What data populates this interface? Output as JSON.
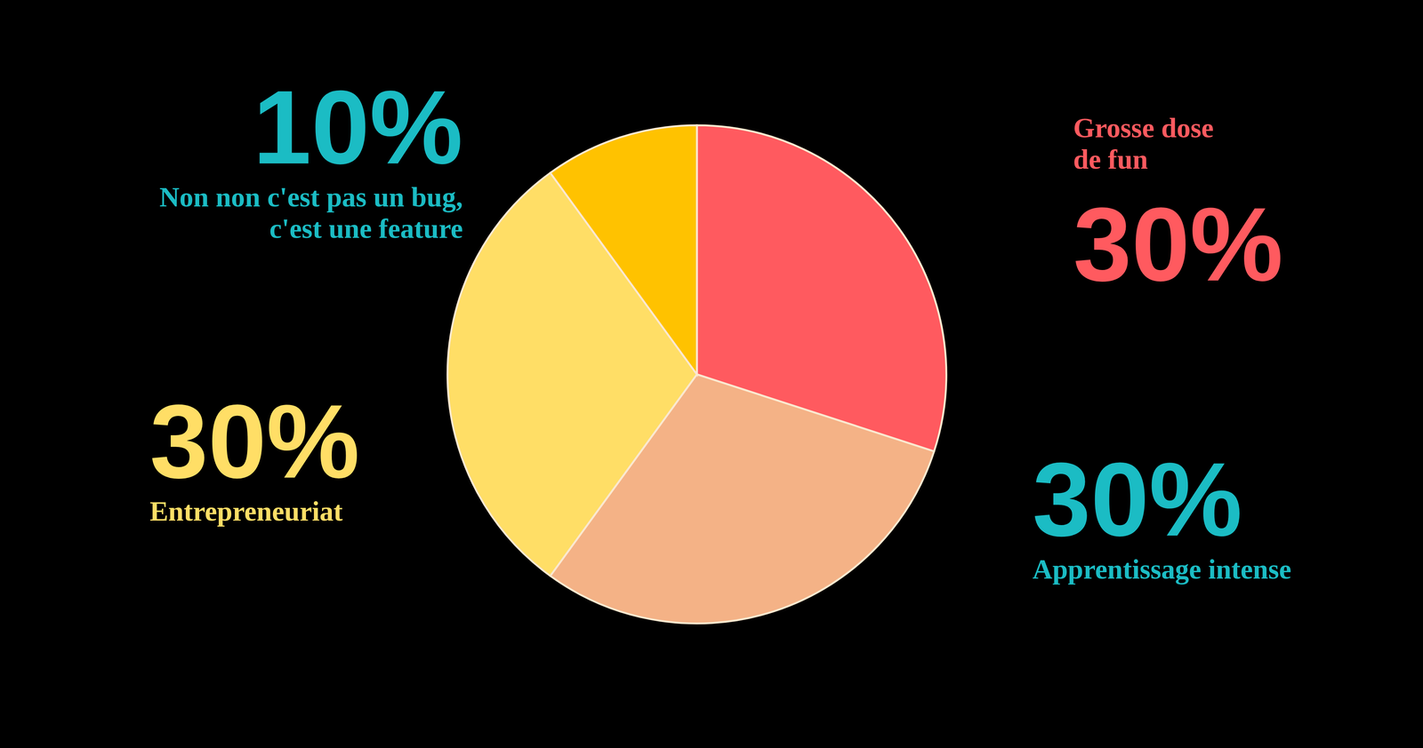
{
  "chart_data": {
    "type": "pie",
    "categories": [
      "Grosse dose de fun",
      "Apprentissage intense",
      "Entrepreneuriat",
      "Non non c'est pas un bug, c'est une feature"
    ],
    "values": [
      30,
      30,
      30,
      10
    ],
    "value_labels": [
      "30%",
      "30%",
      "30%",
      "10%"
    ],
    "colors": [
      "#ff5a5f",
      "#f4b286",
      "#ffde66",
      "#ffc200"
    ],
    "data_labels": true
  }
}
